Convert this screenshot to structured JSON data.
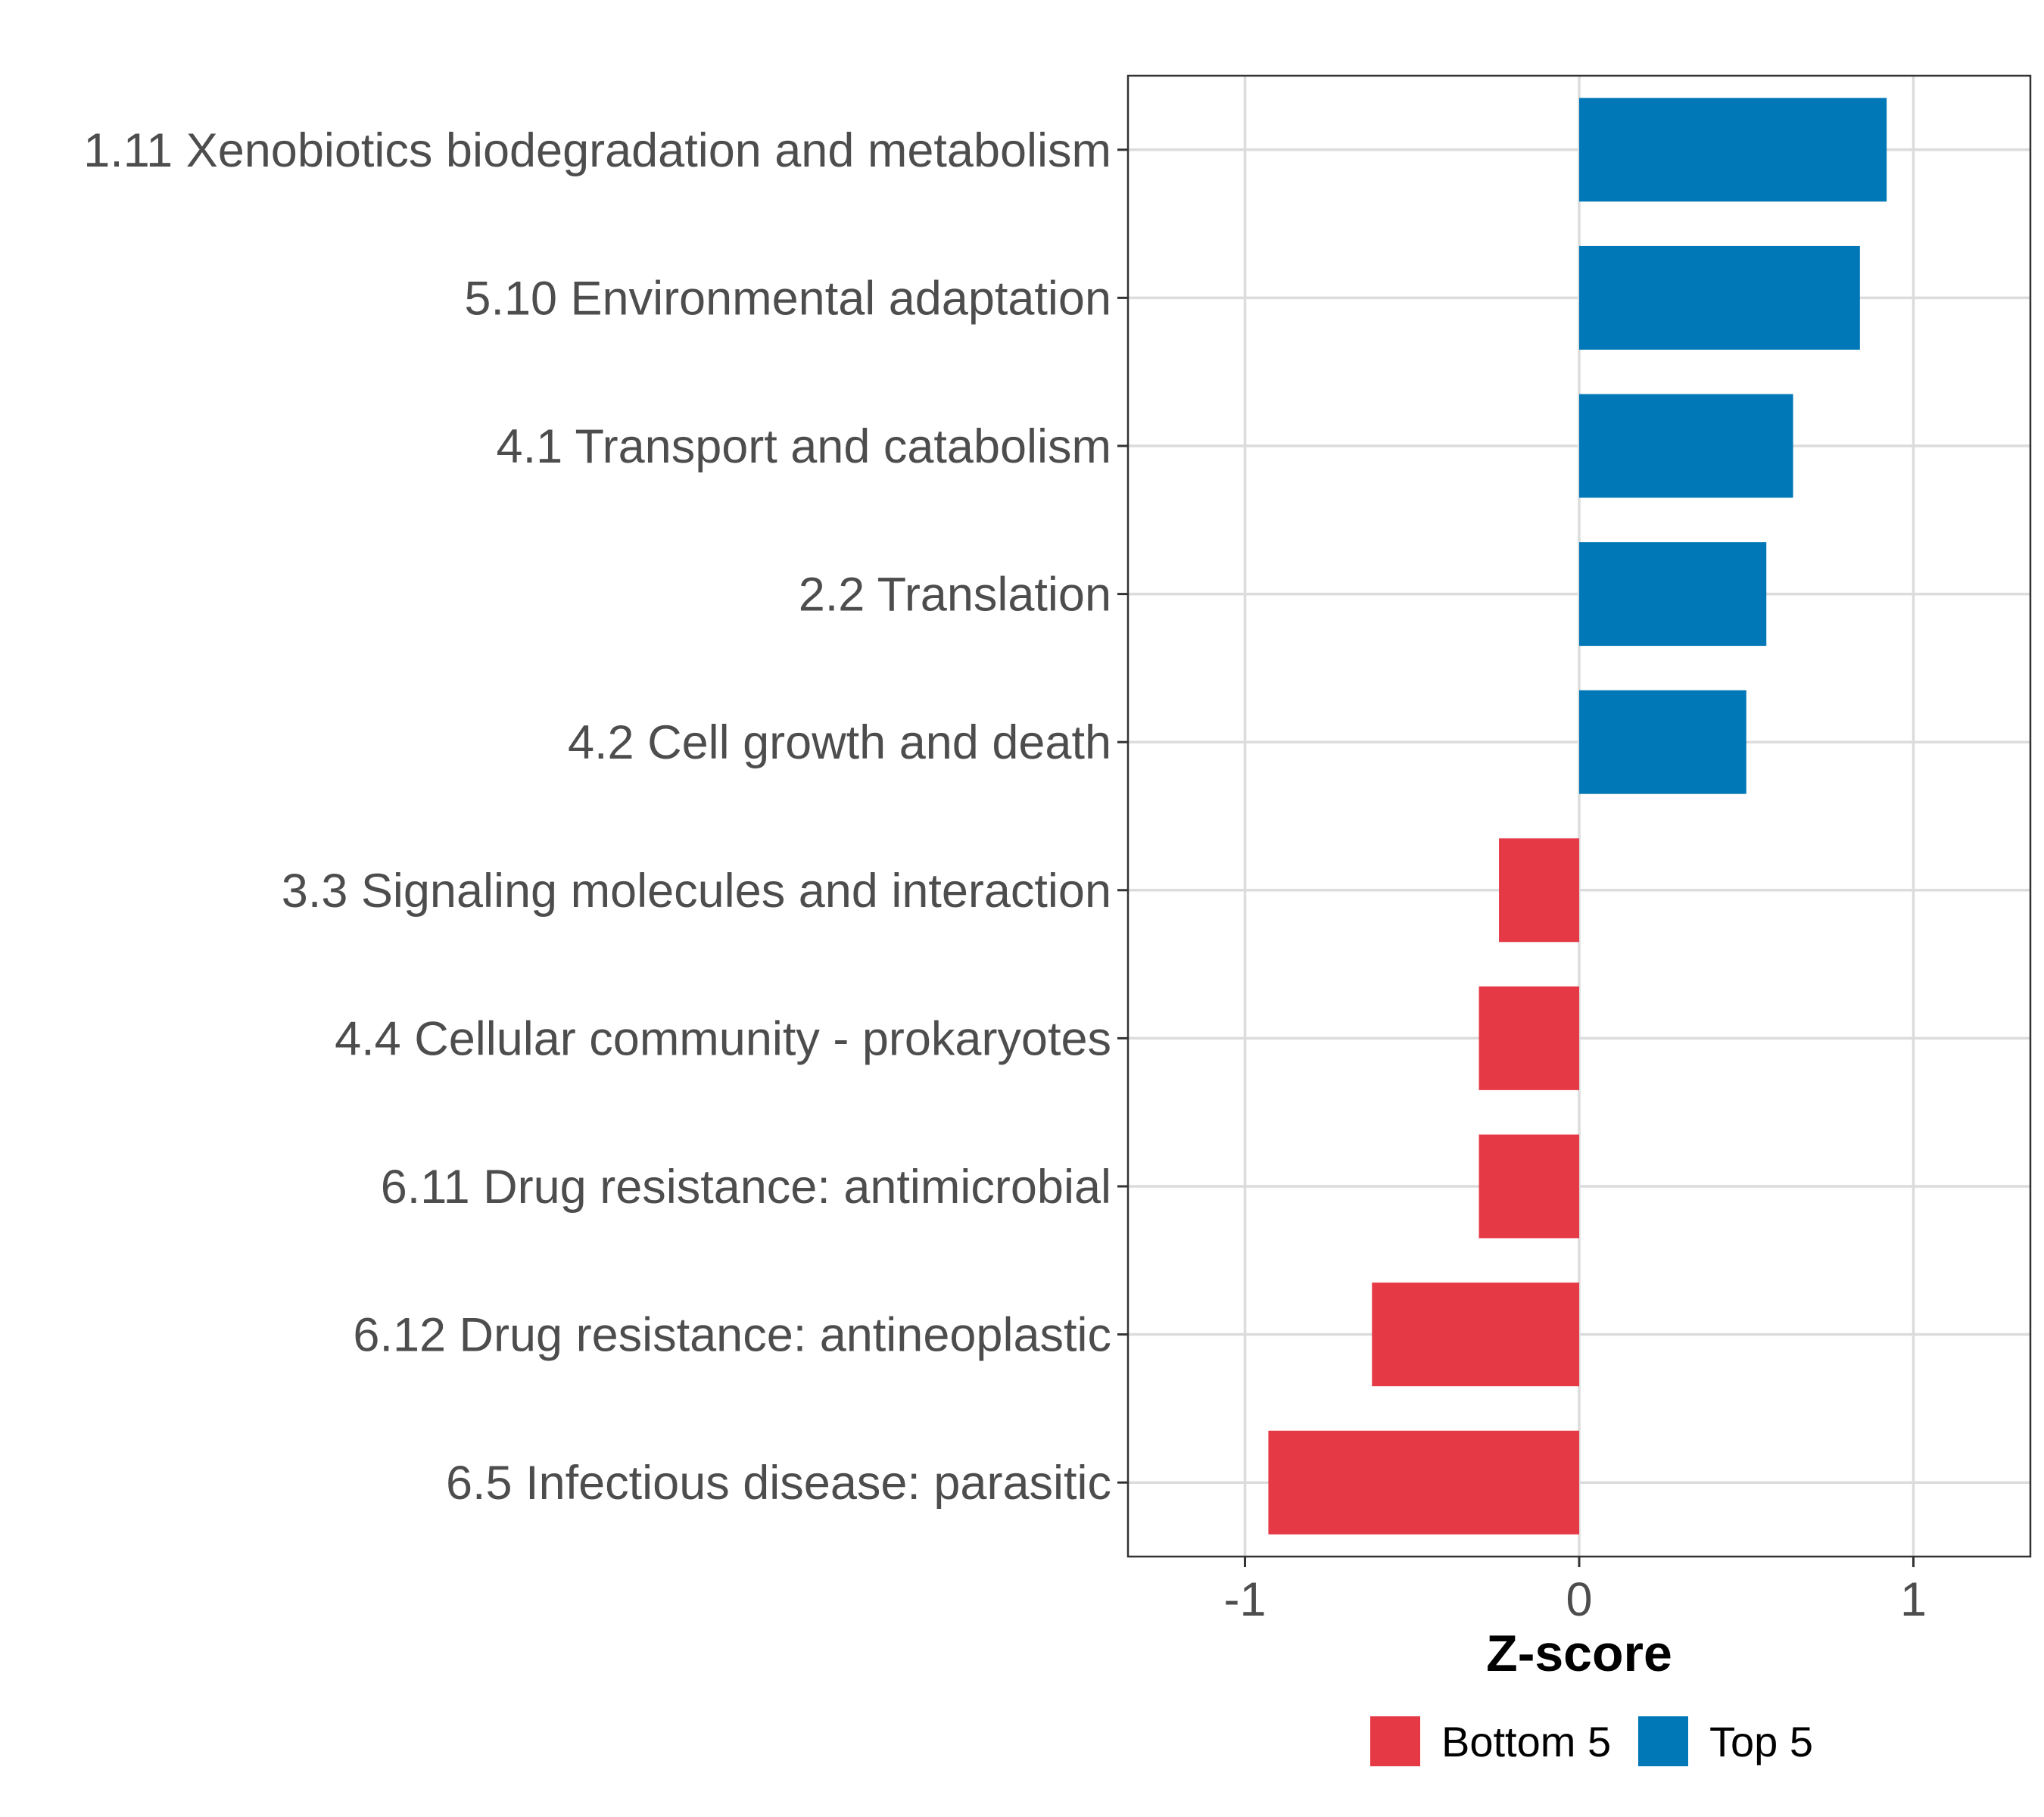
{
  "chart_data": {
    "type": "bar",
    "orientation": "horizontal",
    "title": "",
    "xlabel": "Z-score",
    "ylabel": "",
    "xlim": [
      -1.35,
      1.35
    ],
    "xticks": [
      -1,
      0,
      1
    ],
    "xtick_labels": [
      "-1",
      "0",
      "1"
    ],
    "grid": true,
    "legend_position": "bottom",
    "categories": [
      "1.11 Xenobiotics biodegradation and metabolism",
      "5.10 Environmental adaptation",
      "4.1 Transport and catabolism",
      "2.2 Translation",
      "4.2 Cell growth and death",
      "3.3 Signaling molecules and interaction",
      "4.4 Cellular community - prokaryotes",
      "6.11 Drug resistance: antimicrobial",
      "6.12 Drug resistance: antineoplastic",
      "6.5 Infectious disease: parasitic"
    ],
    "values": [
      0.92,
      0.84,
      0.64,
      0.56,
      0.5,
      -0.24,
      -0.3,
      -0.3,
      -0.62,
      -0.93
    ],
    "groups": [
      "Top 5",
      "Top 5",
      "Top 5",
      "Top 5",
      "Top 5",
      "Bottom 5",
      "Bottom 5",
      "Bottom 5",
      "Bottom 5",
      "Bottom 5"
    ],
    "legend": [
      {
        "name": "Bottom 5",
        "color": "#E63946"
      },
      {
        "name": "Top 5",
        "color": "#0077B6"
      }
    ]
  }
}
